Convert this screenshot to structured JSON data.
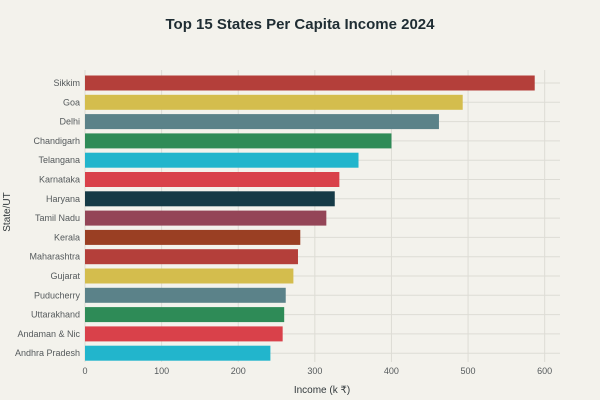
{
  "chart_data": {
    "type": "bar",
    "orientation": "horizontal",
    "title": "Top 15 States Per Capita Income 2024",
    "xlabel": "Income (k ₹)",
    "ylabel": "State/UT",
    "xlim": [
      0,
      620
    ],
    "xticks": [
      0,
      100,
      200,
      300,
      400,
      500,
      600
    ],
    "grid": true,
    "categories": [
      "Sikkim",
      "Goa",
      "Delhi",
      "Chandigarh",
      "Telangana",
      "Karnataka",
      "Haryana",
      "Tamil Nadu",
      "Kerala",
      "Maharashtra",
      "Gujarat",
      "Puducherry",
      "Uttarakhand",
      "Andaman & Nic",
      "Andhra Pradesh"
    ],
    "values": [
      587,
      493,
      462,
      400,
      357,
      332,
      326,
      315,
      281,
      278,
      272,
      262,
      260,
      258,
      242
    ],
    "colors": [
      "#b43f3a",
      "#d4bd4d",
      "#5b8289",
      "#2e8b57",
      "#22b5cc",
      "#d9414a",
      "#153a46",
      "#944557",
      "#9a3f23",
      "#b43f3a",
      "#d4bd4d",
      "#5b8289",
      "#2e8b57",
      "#d9414a",
      "#22b5cc"
    ]
  }
}
